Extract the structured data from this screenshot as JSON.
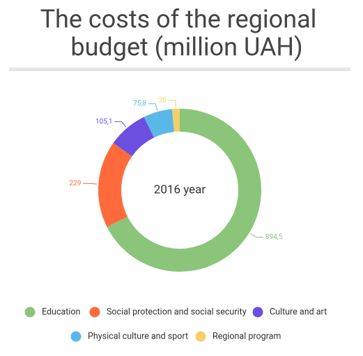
{
  "chart_data": {
    "type": "pie",
    "title_lines": [
      "The costs of the regional",
      "budget (million UAH)"
    ],
    "center_label": "2016 year",
    "categories": [
      "Education",
      "Social protection and social security",
      "Culture and art",
      "Physical culture and sport",
      "Regional program"
    ],
    "values": [
      894.5,
      229,
      105.1,
      75.8,
      20
    ],
    "value_labels": [
      "894,5",
      "229",
      "105,1",
      "75,8",
      "20"
    ],
    "colors": [
      "#8bc57a",
      "#ff6a3d",
      "#6b4fe0",
      "#5ab8e8",
      "#f5cf6b"
    ],
    "legend": "bottom"
  }
}
